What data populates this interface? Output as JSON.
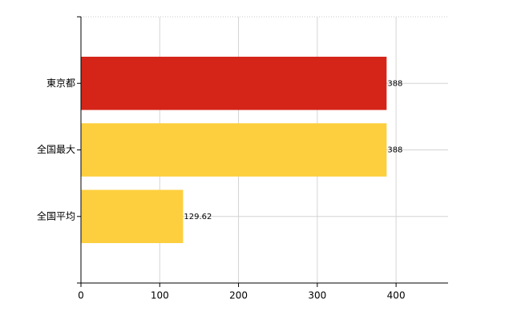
{
  "chart_data": {
    "type": "bar",
    "orientation": "horizontal",
    "categories": [
      "東京都",
      "全国最大",
      "全国平均"
    ],
    "values": [
      388,
      388,
      129.62
    ],
    "colors": [
      "#d42518",
      "#fdcf3e",
      "#fdcf3e"
    ],
    "xlim": [
      0,
      466
    ],
    "xticks": [
      0,
      100,
      200,
      300,
      400
    ],
    "grid": true
  }
}
